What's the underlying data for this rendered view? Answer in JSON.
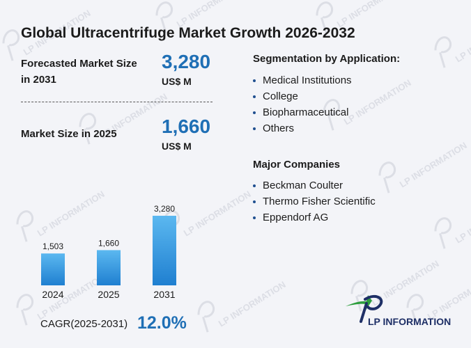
{
  "title": "Global Ultracentrifuge Market Growth 2026-2032",
  "forecast": {
    "label": "Forecasted Market Size in 2031",
    "value": "3,280",
    "unit": "US$ M"
  },
  "current": {
    "label": "Market Size in 2025",
    "value": "1,660",
    "unit": "US$ M"
  },
  "segmentation": {
    "heading": "Segmentation by Application:",
    "items": [
      "Medical Institutions",
      "College",
      "Biopharmaceutical",
      "Others"
    ]
  },
  "companies": {
    "heading": "Major Companies",
    "items": [
      "Beckman Coulter",
      "Thermo Fisher Scientific",
      "Eppendorf AG"
    ]
  },
  "cagr": {
    "label": "CAGR(2025-2031)",
    "value": "12.0%"
  },
  "logo": {
    "text": "LP INFORMATION"
  },
  "watermark": {
    "text": "LP INFORMATION"
  },
  "colors": {
    "accent": "#1f6fb5",
    "bar_top": "#5bb8f0",
    "bar_bottom": "#1f7fd0",
    "logo_green": "#2e9e3e",
    "logo_blue": "#1e2f66"
  },
  "chart_data": {
    "type": "bar",
    "categories": [
      "2024",
      "2025",
      "2031"
    ],
    "values": [
      1503,
      1660,
      3280
    ],
    "value_labels": [
      "1,503",
      "1,660",
      "3,280"
    ],
    "title": "",
    "xlabel": "",
    "ylabel": "",
    "ylim": [
      0,
      3280
    ],
    "grid": false,
    "legend": "none"
  }
}
